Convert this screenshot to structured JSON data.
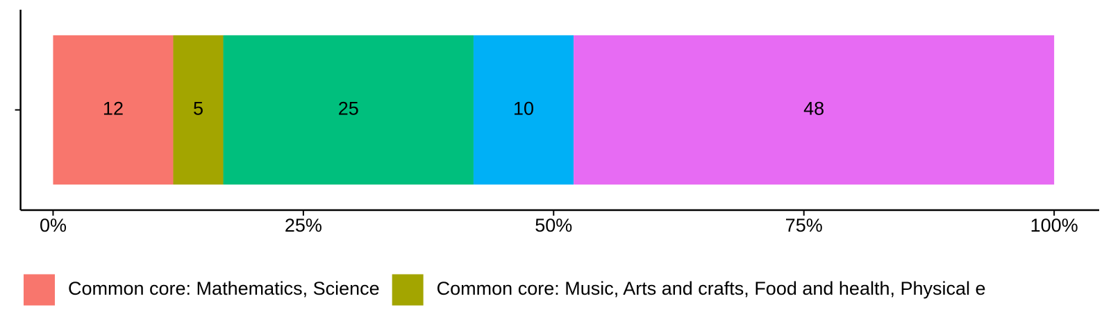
{
  "chart_data": {
    "type": "stacked-bar",
    "orientation": "horizontal",
    "categories": [
      null
    ],
    "series": [
      {
        "name": "Common core: Mathematics, Science",
        "color": "#F8766D",
        "values": [
          12
        ]
      },
      {
        "name": "Common core: Music, Arts and crafts, Food and health, Physical e",
        "color": "#A3A500",
        "values": [
          5
        ]
      },
      {
        "color": "#00BF7D",
        "values": [
          25
        ]
      },
      {
        "color": "#00B0F6",
        "values": [
          10
        ]
      },
      {
        "color": "#E76BF3",
        "values": [
          48
        ]
      }
    ],
    "xlim": [
      -3.25,
      104.5
    ],
    "xticks": [
      {
        "value": 0,
        "label": "0%"
      },
      {
        "value": 25,
        "label": "25%"
      },
      {
        "value": 50,
        "label": "50%"
      },
      {
        "value": 75,
        "label": "75%"
      },
      {
        "value": 100,
        "label": "100%"
      }
    ],
    "grid": false,
    "legend": "bottom"
  }
}
